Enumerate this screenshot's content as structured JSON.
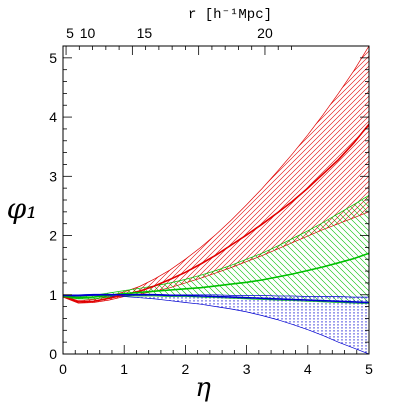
{
  "chart_data": {
    "type": "line",
    "xlabel": "η",
    "ylabel": "φ₁",
    "top_axis_label": "r [h⁻¹Mpc]",
    "xlim": [
      0,
      5
    ],
    "ylim": [
      0,
      5.2
    ],
    "x_ticks": [
      "0",
      "1",
      "2",
      "3",
      "4",
      "5"
    ],
    "y_ticks": [
      "0",
      "1",
      "2",
      "3",
      "4",
      "5"
    ],
    "top_ticks": [
      {
        "label": "5",
        "eta": 0.05
      },
      {
        "label": "10",
        "eta": 0.4
      },
      {
        "label": "15",
        "eta": 1.33
      },
      {
        "label": "20",
        "eta": 3.3
      }
    ],
    "grid": false,
    "x": [
      0,
      0.25,
      0.5,
      0.75,
      1,
      1.25,
      1.5,
      1.75,
      2,
      2.25,
      2.5,
      2.75,
      3,
      3.25,
      3.5,
      3.75,
      4,
      4.25,
      4.5,
      4.75,
      5
    ],
    "series": [
      {
        "color": "#e00000",
        "hatch": "/",
        "central": [
          0.97,
          0.88,
          0.89,
          0.94,
          1.0,
          1.06,
          1.15,
          1.26,
          1.38,
          1.52,
          1.67,
          1.84,
          2.01,
          2.19,
          2.38,
          2.58,
          2.8,
          3.04,
          3.28,
          3.56,
          3.88
        ],
        "upper": [
          0.98,
          0.9,
          0.92,
          0.98,
          1.05,
          1.14,
          1.27,
          1.42,
          1.6,
          1.8,
          2.02,
          2.26,
          2.52,
          2.79,
          3.08,
          3.38,
          3.7,
          4.04,
          4.4,
          4.78,
          5.2
        ],
        "lower": [
          0.96,
          0.86,
          0.87,
          0.91,
          0.97,
          1.01,
          1.06,
          1.12,
          1.2,
          1.28,
          1.37,
          1.46,
          1.56,
          1.66,
          1.77,
          1.88,
          1.99,
          2.1,
          2.2,
          2.3,
          2.4
        ]
      },
      {
        "color": "#00c000",
        "hatch": "\\",
        "central": [
          0.97,
          0.95,
          0.96,
          0.99,
          1.02,
          1.04,
          1.06,
          1.08,
          1.1,
          1.12,
          1.15,
          1.18,
          1.21,
          1.25,
          1.3,
          1.35,
          1.41,
          1.47,
          1.54,
          1.61,
          1.7
        ],
        "upper": [
          0.98,
          0.97,
          0.99,
          1.03,
          1.07,
          1.11,
          1.15,
          1.2,
          1.26,
          1.33,
          1.41,
          1.5,
          1.6,
          1.7,
          1.82,
          1.95,
          2.08,
          2.22,
          2.37,
          2.52,
          2.68
        ],
        "lower": [
          0.96,
          0.93,
          0.93,
          0.96,
          0.98,
          0.98,
          0.98,
          0.97,
          0.97,
          0.96,
          0.95,
          0.94,
          0.93,
          0.92,
          0.91,
          0.9,
          0.89,
          0.88,
          0.87,
          0.86,
          0.85
        ]
      },
      {
        "color": "#0000d0",
        "hatch": "|",
        "central": [
          0.99,
          0.99,
          1.0,
          1.0,
          1.0,
          1.0,
          1.0,
          0.99,
          0.99,
          0.98,
          0.97,
          0.96,
          0.95,
          0.94,
          0.93,
          0.92,
          0.91,
          0.9,
          0.89,
          0.88,
          0.87
        ],
        "upper": [
          1.0,
          1.0,
          1.01,
          1.01,
          1.01,
          1.01,
          1.01,
          1.0,
          1.0,
          1.0,
          1.0,
          0.99,
          0.99,
          0.99,
          0.98,
          0.98,
          0.97,
          0.97,
          0.97,
          0.96,
          0.96
        ],
        "lower": [
          0.98,
          0.98,
          0.99,
          0.98,
          0.97,
          0.95,
          0.93,
          0.9,
          0.87,
          0.84,
          0.8,
          0.76,
          0.71,
          0.65,
          0.58,
          0.5,
          0.41,
          0.31,
          0.2,
          0.1,
          0.0
        ]
      }
    ]
  }
}
